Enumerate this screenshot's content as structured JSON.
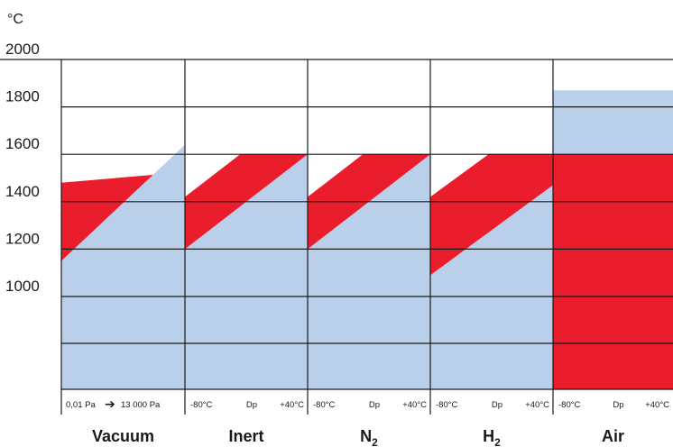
{
  "chart_data": {
    "type": "area",
    "ylabel": "°C",
    "ylim": [
      0,
      2000
    ],
    "yticks": [
      1000,
      1200,
      1400,
      1600,
      1800,
      2000
    ],
    "grid": true,
    "colors": {
      "blue": "#b9cfea",
      "red": "#ea1d2c",
      "grid": "#1a1a1a"
    },
    "panels": [
      {
        "atmosphere": "Vacuum",
        "subscript": "",
        "conditions": {
          "left": "0,01 Pa",
          "arrow": "➔",
          "right": "13 000 Pa"
        },
        "blue": {
          "start": 1150,
          "end": 1640,
          "top": null
        },
        "red": {
          "upper_start": 1480,
          "upper_end": 1525
        }
      },
      {
        "atmosphere": "Inert",
        "subscript": "",
        "conditions": {
          "left": "-80°C",
          "mid": "Dp",
          "right": "+40°C"
        },
        "blue": {
          "start": 1200,
          "end": 1600,
          "top": 1600
        },
        "red": {
          "upper_start": 1420,
          "upper_end": 1600
        }
      },
      {
        "atmosphere": "N",
        "subscript": "2",
        "conditions": {
          "left": "-80°C",
          "mid": "Dp",
          "right": "+40°C"
        },
        "blue": {
          "start": 1200,
          "end": 1600,
          "top": 1600
        },
        "red": {
          "upper_start": 1420,
          "upper_end": 1600
        }
      },
      {
        "atmosphere": "H",
        "subscript": "2",
        "conditions": {
          "left": "-80°C",
          "mid": "Dp",
          "right": "+40°C"
        },
        "blue": {
          "start": 1090,
          "end": 1470,
          "top": 1600
        },
        "red": {
          "upper_start": 1420,
          "upper_end": 1600
        }
      },
      {
        "atmosphere": "Air",
        "subscript": "",
        "conditions": {
          "left": "-80°C",
          "mid": "Dp",
          "right": "+40°C"
        },
        "blue": {
          "start": 1870,
          "end": 1870,
          "top": 1870
        },
        "red": {
          "flat": 1600
        }
      }
    ]
  }
}
